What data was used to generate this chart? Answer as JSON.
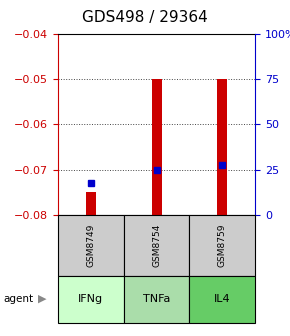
{
  "title": "GDS498 / 29364",
  "samples": [
    "GSM8749",
    "GSM8754",
    "GSM8759"
  ],
  "agents": [
    "IFNg",
    "TNFa",
    "IL4"
  ],
  "bar_bottoms": [
    -0.08,
    -0.08,
    -0.08
  ],
  "bar_tops": [
    -0.075,
    -0.05,
    -0.05
  ],
  "percentile_values": [
    -0.073,
    -0.07,
    -0.069
  ],
  "ylim_left": [
    -0.08,
    -0.04
  ],
  "yticks_left": [
    -0.08,
    -0.07,
    -0.06,
    -0.05,
    -0.04
  ],
  "yticks_right": [
    0,
    25,
    50,
    75,
    100
  ],
  "ylim_right": [
    0,
    100
  ],
  "bar_color": "#cc0000",
  "percentile_color": "#0000cc",
  "agent_colors": [
    "#ccffcc",
    "#aaddaa",
    "#66cc66"
  ],
  "sample_bg_color": "#cccccc",
  "grid_color": "#444444",
  "title_fontsize": 11,
  "tick_fontsize": 8,
  "bar_width": 0.15
}
